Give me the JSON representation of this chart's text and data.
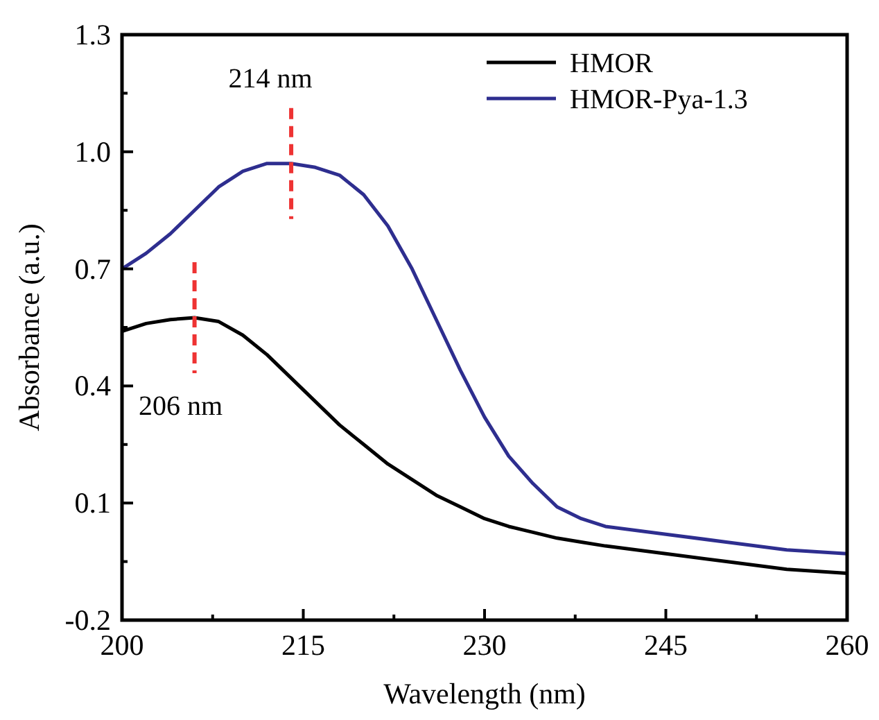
{
  "chart_data": {
    "type": "line",
    "xlabel": "Wavelength (nm)",
    "ylabel": "Absorbance (a.u.)",
    "xlim": [
      200,
      260
    ],
    "ylim": [
      -0.2,
      1.3
    ],
    "xticks": [
      200,
      {
        "value": 207.5,
        "label": null
      },
      215,
      {
        "value": 222.5,
        "label": null
      },
      230,
      {
        "value": 237.5,
        "label": null
      },
      245,
      {
        "value": 252.5,
        "label": null
      },
      260
    ],
    "yticks": [
      -0.2,
      {
        "value": -0.05,
        "label": null
      },
      0.1,
      {
        "value": 0.25,
        "label": null
      },
      0.4,
      {
        "value": 0.55,
        "label": null
      },
      0.7,
      {
        "value": 0.85,
        "label": null
      },
      {
        "value": 1,
        "label": "1.0"
      },
      {
        "value": 1.15,
        "label": null
      },
      1.3
    ],
    "x": [
      200,
      202,
      204,
      206,
      208,
      210,
      212,
      214,
      216,
      218,
      220,
      222,
      224,
      226,
      228,
      230,
      232,
      234,
      236,
      238,
      240,
      245,
      250,
      255,
      260
    ],
    "series": [
      {
        "name": "HMOR",
        "color": "#000000",
        "values": [
          0.54,
          0.56,
          0.57,
          0.575,
          0.565,
          0.53,
          0.48,
          0.42,
          0.36,
          0.3,
          0.25,
          0.2,
          0.16,
          0.12,
          0.09,
          0.06,
          0.04,
          0.025,
          0.01,
          0,
          -0.01,
          -0.03,
          -0.05,
          -0.07,
          -0.08
        ]
      },
      {
        "name": "HMOR-Pya-1.3",
        "color": "#2e2e8f",
        "values": [
          0.7,
          0.74,
          0.79,
          0.85,
          0.91,
          0.95,
          0.97,
          0.97,
          0.96,
          0.94,
          0.89,
          0.81,
          0.7,
          0.57,
          0.44,
          0.32,
          0.22,
          0.15,
          0.09,
          0.06,
          0.04,
          0.02,
          0,
          -0.02,
          -0.03
        ]
      }
    ],
    "annotations": [
      {
        "text": "206 nm",
        "x": 206,
        "y": 0.575
      },
      {
        "text": "214 nm",
        "x": 214,
        "y": 0.97
      }
    ],
    "legend": "top right",
    "grid": false,
    "marker": "none",
    "line_style": "solid"
  }
}
